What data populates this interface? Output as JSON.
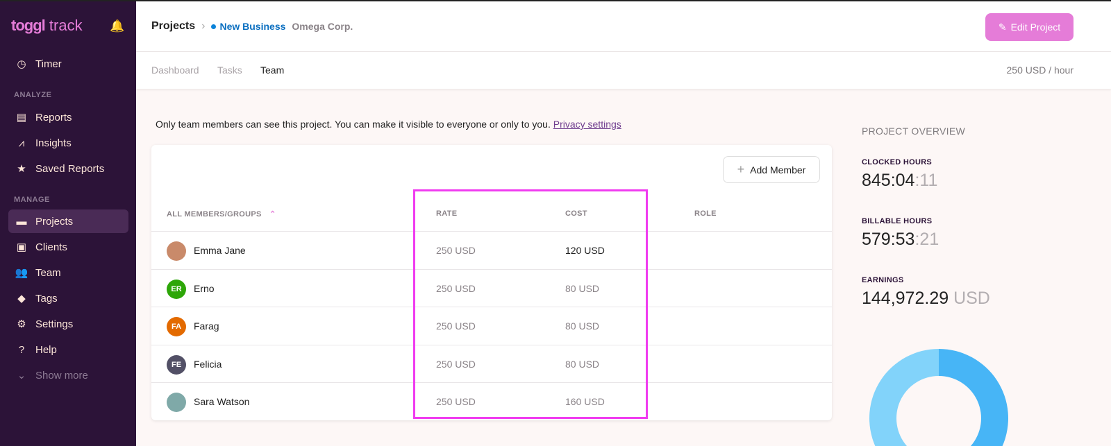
{
  "sidebar": {
    "logo": "toggl track",
    "logo_bold": "toggl",
    "logo_rest": "track",
    "timer": "Timer",
    "analyze": "ANALYZE",
    "manage": "MANAGE",
    "items": [
      {
        "label": "Reports",
        "icon": "report-icon"
      },
      {
        "label": "Insights",
        "icon": "insights-icon"
      },
      {
        "label": "Saved Reports",
        "icon": "star-icon"
      }
    ],
    "manage_items": [
      {
        "label": "Projects",
        "icon": "folder-icon"
      },
      {
        "label": "Clients",
        "icon": "client-icon"
      },
      {
        "label": "Team",
        "icon": "team-icon"
      },
      {
        "label": "Tags",
        "icon": "tag-icon"
      },
      {
        "label": "Settings",
        "icon": "gear-icon"
      },
      {
        "label": "Help",
        "icon": "help-icon"
      },
      {
        "label": "Show more",
        "icon": "chevron-down-icon"
      }
    ]
  },
  "header": {
    "crumb_root": "Projects",
    "project": "New Business",
    "client": "Omega Corp.",
    "edit_label": "Edit Project",
    "project_color": "#0b83d9"
  },
  "tabs": [
    {
      "label": "Dashboard"
    },
    {
      "label": "Tasks"
    },
    {
      "label": "Team",
      "active": true
    }
  ],
  "rate": "250 USD / hour",
  "notice": {
    "text": "Only team members can see this project. You can make it visible to everyone or only to you.",
    "link": "Privacy settings"
  },
  "table": {
    "add_label": "Add Member",
    "headers": [
      "ALL MEMBERS/GROUPS",
      "RATE",
      "COST",
      "ROLE"
    ],
    "rows": [
      {
        "initials": "",
        "name": "Emma Jane",
        "rate": "250 USD",
        "cost": "120 USD",
        "color": "#c98a6a"
      },
      {
        "initials": "ER",
        "name": "Erno",
        "rate": "250 USD",
        "cost": "80 USD",
        "color": "#2da608"
      },
      {
        "initials": "FA",
        "name": "Farag",
        "rate": "250 USD",
        "cost": "80 USD",
        "color": "#e36a00"
      },
      {
        "initials": "FE",
        "name": "Felicia",
        "rate": "250 USD",
        "cost": "80 USD",
        "color": "#525066"
      },
      {
        "initials": "",
        "name": "Sara Watson",
        "rate": "250 USD",
        "cost": "160 USD",
        "color": "#7fa9a8"
      }
    ]
  },
  "overview": {
    "title": "PROJECT OVERVIEW",
    "clocked_label": "CLOCKED HOURS",
    "clocked": "845:04",
    "clocked_sec": ":11",
    "billable_label": "BILLABLE HOURS",
    "billable": "579:53",
    "billable_sec": ":21",
    "earnings_label": "EARNINGS",
    "earnings": "144,972.29",
    "earnings_unit": "USD"
  },
  "chart_data": {
    "type": "pie",
    "colors": [
      "#47b5f6",
      "#82d3fa"
    ]
  }
}
